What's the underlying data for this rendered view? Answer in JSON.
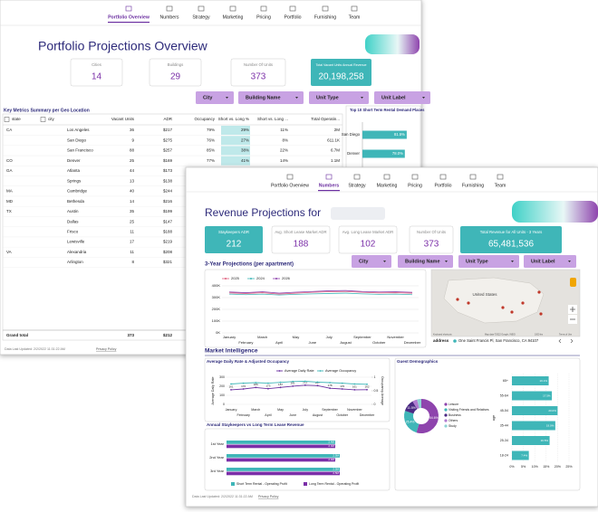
{
  "back": {
    "nav": [
      "Portfolio Overview",
      "Numbers",
      "Strategy",
      "Marketing",
      "Pricing",
      "Portfolio",
      "Furnishing",
      "Team"
    ],
    "title": "Portfolio Projections Overview",
    "kpis": [
      {
        "label": "Cities",
        "value": "14"
      },
      {
        "label": "Buildings",
        "value": "29"
      },
      {
        "label": "Number Of Units",
        "value": "373"
      },
      {
        "label": "Total Vacant Units Annual Revenue",
        "value": "20,198,258"
      }
    ],
    "filters": [
      "City",
      "Building Name",
      "Unit Type",
      "Unit Label"
    ],
    "table": {
      "title": "Key Metrics Summary per Geo Location",
      "columns": [
        "state",
        "city",
        "Vacant Units",
        "ADR",
        "Occupancy",
        "Short vs. Long %",
        "Short vs. Long ...",
        "Total Operatin..."
      ],
      "groups": [
        {
          "state": "CA",
          "rows": [
            [
              "Los Angeles",
              "36",
              "$217",
              "79%",
              "29%",
              "11%",
              "2M"
            ],
            [
              "San Diego",
              "9",
              "$275",
              "76%",
              "27%",
              "8%",
              "611.1K"
            ],
            [
              "San Francisco",
              "88",
              "$257",
              "85%",
              "38%",
              "22%",
              "6.7M"
            ]
          ]
        },
        {
          "state": "CO",
          "rows": [
            [
              "Denver",
              "25",
              "$169",
              "77%",
              "41%",
              "14%",
              "1.1M"
            ]
          ]
        },
        {
          "state": "GA",
          "rows": [
            [
              "Atlanta",
              "44",
              "$173"
            ],
            [
              "Springs",
              "13",
              "$138"
            ]
          ]
        },
        {
          "state": "MA",
          "rows": [
            [
              "Cambridge",
              "40",
              "$244"
            ]
          ]
        },
        {
          "state": "MD",
          "rows": [
            [
              "Bethesda",
              "14",
              "$216"
            ]
          ]
        },
        {
          "state": "TX",
          "rows": [
            [
              "Austin",
              "35",
              "$199"
            ],
            [
              "Dallas",
              "25",
              "$147"
            ],
            [
              "Frisco",
              "11",
              "$188"
            ],
            [
              "Lewisville",
              "17",
              "$219"
            ]
          ]
        },
        {
          "state": "VA",
          "rows": [
            [
              "Alexandria",
              "11",
              "$208"
            ],
            [
              "Arlington",
              "8",
              "$321"
            ]
          ]
        }
      ],
      "total": [
        "Grand total",
        "373",
        "$212"
      ]
    },
    "demand": {
      "title": "Top 10 Short Term Rental Demand Places",
      "categories": [
        "San Diego",
        "Denver"
      ],
      "values": [
        81.5,
        78.0
      ],
      "value_labels": [
        "81.5%",
        "78.0%"
      ],
      "xlim": [
        0,
        100
      ],
      "color": "#3fb6b8"
    },
    "footer": "Data Last Updated: 2/2/2022 11:31:22 AM",
    "privacy": "Privacy Policy"
  },
  "front": {
    "nav": [
      "Portfolio Overview",
      "Numbers",
      "Strategy",
      "Marketing",
      "Pricing",
      "Portfolio",
      "Furnishing",
      "Team"
    ],
    "title": "Revenue Projections for",
    "kpis": [
      {
        "label": "Staykeepers ADR",
        "value": "212"
      },
      {
        "label": "Avg. Short Lease Market ADR",
        "value": "188"
      },
      {
        "label": "Avg. Long Lease Market ADR",
        "value": "102"
      },
      {
        "label": "Number Of Units",
        "value": "373"
      },
      {
        "label": "Total Revenue for All Units - 3 Years",
        "value": "65,481,536"
      }
    ],
    "filters": [
      "City",
      "Building Name",
      "Unit Type",
      "Unit Label"
    ],
    "projections": {
      "type": "line",
      "title": "3-Year Projections (per apartment)",
      "categories": [
        "January",
        "February",
        "March",
        "April",
        "May",
        "June",
        "July",
        "August",
        "September",
        "October",
        "November",
        "December"
      ],
      "series": [
        {
          "name": "2025",
          "color": "#e0607e",
          "values": [
            340000,
            335000,
            342000,
            330000,
            338000,
            345000,
            350000,
            352000,
            345000,
            340000,
            342000,
            338000
          ]
        },
        {
          "name": "2024",
          "color": "#3fb6b8",
          "values": [
            330000,
            325000,
            330000,
            322000,
            328000,
            332000,
            335000,
            338000,
            332000,
            328000,
            330000,
            325000
          ]
        },
        {
          "name": "2026",
          "color": "#8e44ad",
          "values": [
            348000,
            342000,
            350000,
            338000,
            346000,
            352000,
            358000,
            360000,
            352000,
            348000,
            350000,
            345000
          ]
        }
      ],
      "ylim": [
        0,
        400000
      ],
      "yticks": [
        {
          "value": 0,
          "label": "0K"
        },
        {
          "value": 100000,
          "label": "100K"
        },
        {
          "value": 200000,
          "label": "200K"
        },
        {
          "value": 300000,
          "label": "300K"
        },
        {
          "value": 400000,
          "label": "400K"
        }
      ],
      "grid": true
    },
    "map": {
      "label": "United States",
      "attribution": [
        "Keyboard shortcuts",
        "Map data ©2022 Google, INEGI",
        "1000 km",
        "Terms of Use"
      ],
      "address_label": "address",
      "address": "One Saint Francis Pl, San Francisco, CA 94107"
    },
    "market_title": "Market Intelligence",
    "adr": {
      "type": "line",
      "title": "Average Daily Rate & Adjusted Occupancy",
      "categories": [
        "January",
        "February",
        "March",
        "April",
        "May",
        "June",
        "July",
        "August",
        "September",
        "October",
        "November",
        "December"
      ],
      "series": [
        {
          "name": "Average Daily Rate",
          "color": "#6b2fa0",
          "values": [
            161,
            170,
            186,
            173,
            187,
            201,
            212,
            207,
            178,
            170,
            161,
            162
          ]
        },
        {
          "name": "Average Occupancy",
          "color": "#3fb6b8",
          "axis": "y2",
          "values": [
            0.75,
            0.78,
            0.8,
            0.78,
            0.81,
            0.84,
            0.85,
            0.82,
            0.8,
            0.78,
            0.75,
            0.74
          ]
        }
      ],
      "ylabel": "Average Daily Rate",
      "y2label": "Occupancy Average",
      "ylim": [
        0,
        300
      ],
      "yticks": [
        0,
        100,
        200,
        300
      ],
      "y2lim": [
        0,
        1
      ],
      "y2ticks": [
        0,
        0.5,
        1
      ]
    },
    "revenue": {
      "type": "hbar",
      "title": "Annual Staykeepers vs Long Term Lease Revenue",
      "categories": [
        "1st Year",
        "2nd Year",
        "3rd Year"
      ],
      "series": [
        {
          "name": "Short Term Rental - Operating Profit",
          "color": "#3fb6b8",
          "values": [
            2400000,
            2500000,
            2500000
          ],
          "value_labels": [
            "2.4M",
            "2.5M",
            "2.5M"
          ]
        },
        {
          "name": "Long Term Rental - Operating Profit",
          "color": "#7b2fa8",
          "values": [
            2400000,
            2400000,
            2500000
          ],
          "value_labels": [
            "2.4M",
            "2.4M",
            "2.5M"
          ]
        }
      ],
      "xlim": [
        0,
        3000000
      ]
    },
    "demographics": {
      "title": "Guest Demographics",
      "purpose": {
        "type": "donut",
        "categories": [
          "Leisure",
          "Visiting Friends and Relatives",
          "Business",
          "Others",
          "Study"
        ],
        "values": [
          54.6,
          25.4,
          11.5,
          4.5,
          4.0
        ],
        "value_labels": [
          "54.6%",
          "25.4%",
          "11.5%",
          null,
          null
        ],
        "colors": [
          "#8e44ad",
          "#3fb6b8",
          "#4b2a83",
          "#b07cd0",
          "#8fd3d4"
        ]
      },
      "age": {
        "type": "hbar",
        "ylabel": "age",
        "categories": [
          "65+",
          "55-64",
          "45-54",
          "35-44",
          "25-34",
          "18-24"
        ],
        "values": [
          16.1,
          17.5,
          20.0,
          19.0,
          16.5,
          7.4
        ],
        "value_labels": [
          "16.1%",
          "17.5%",
          "20.0%",
          "19.0%",
          "16.5%",
          "7.4%"
        ],
        "color": "#3fb6b8",
        "xlim": [
          0,
          25
        ],
        "xticks": [
          {
            "value": 0,
            "label": "0%"
          },
          {
            "value": 5,
            "label": "5%"
          },
          {
            "value": 10,
            "label": "10%"
          },
          {
            "value": 15,
            "label": "15%"
          },
          {
            "value": 20,
            "label": "20%"
          },
          {
            "value": 25,
            "label": "25%"
          }
        ]
      }
    },
    "footer": "Data Last Updated: 2/2/2022 11:31:22 AM",
    "privacy": "Privacy Policy"
  }
}
